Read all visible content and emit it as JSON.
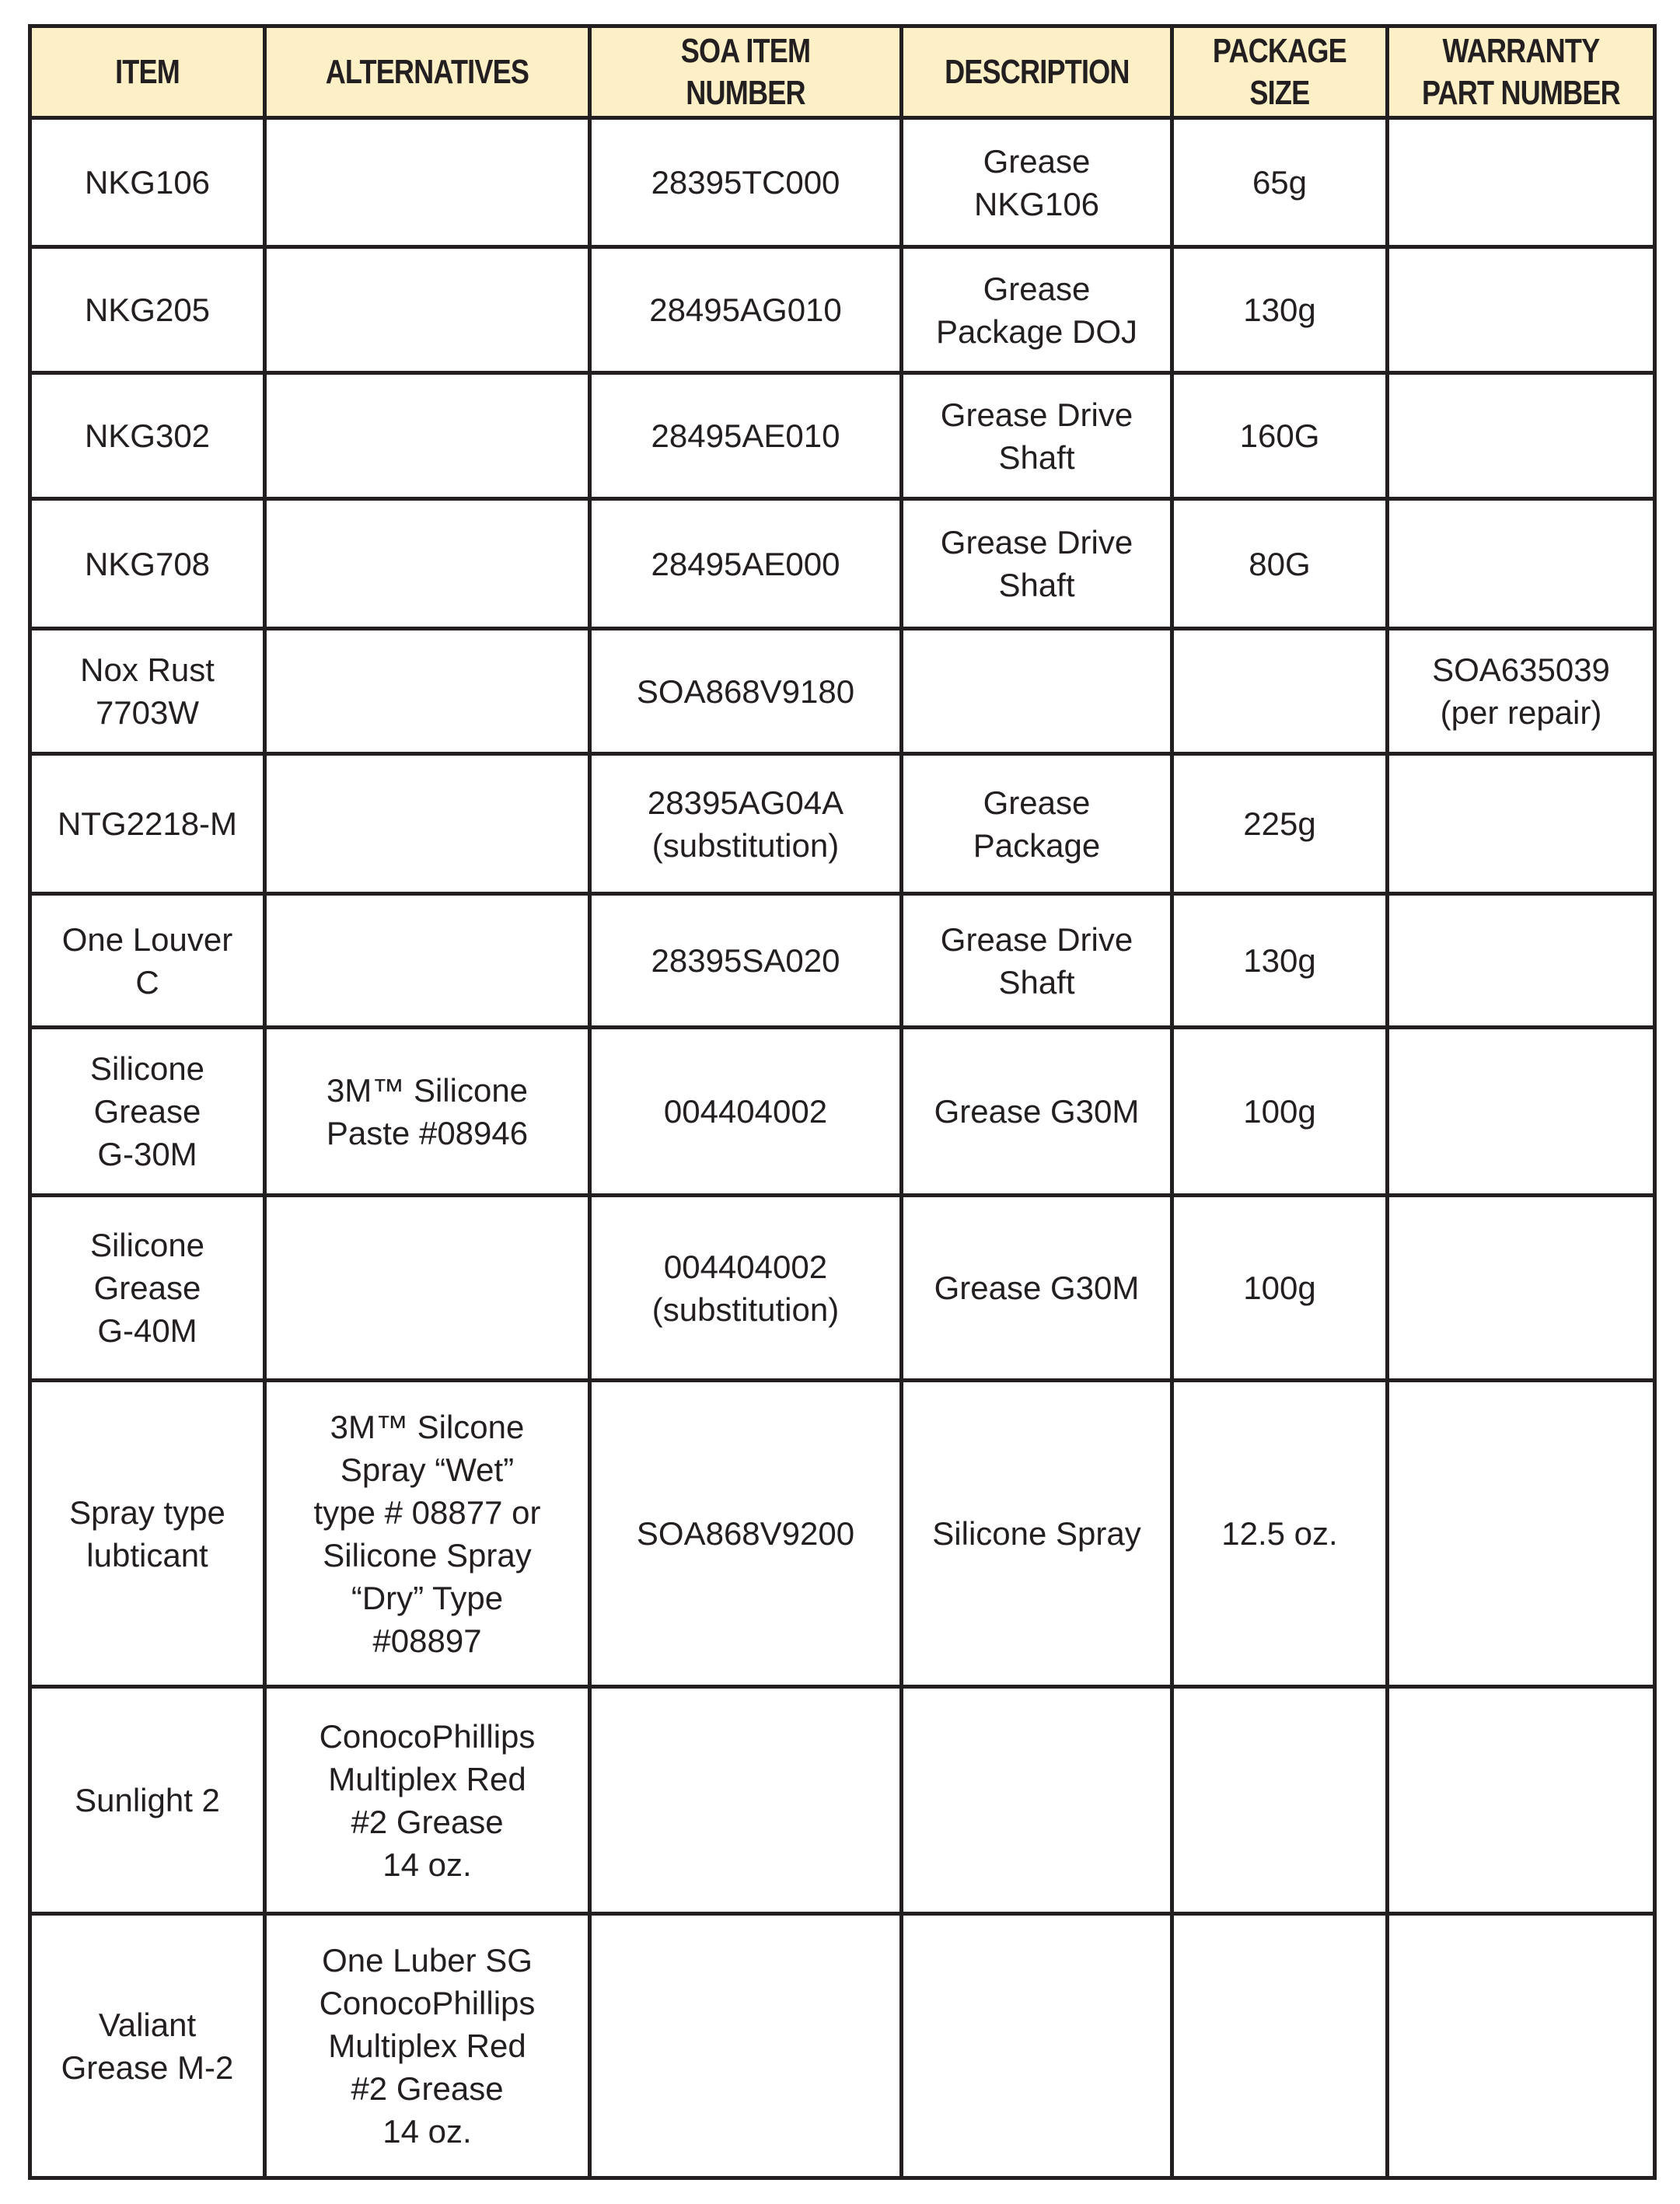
{
  "table": {
    "header_bg": "#fdf0c6",
    "columns": [
      "ITEM",
      "ALTERNATIVES",
      "SOA ITEM NUMBER",
      "DESCRIPTION",
      "PACKAGE\nSIZE",
      "WARRANTY\nPART NUMBER"
    ],
    "rows": [
      [
        "NKG106",
        "",
        "28395TC000",
        "Grease\nNKG106",
        "65g",
        ""
      ],
      [
        "NKG205",
        "",
        "28495AG010",
        "Grease\nPackage DOJ",
        "130g",
        ""
      ],
      [
        "NKG302",
        "",
        "28495AE010",
        "Grease Drive\nShaft",
        "160G",
        ""
      ],
      [
        "NKG708",
        "",
        "28495AE000",
        "Grease Drive\nShaft",
        "80G",
        ""
      ],
      [
        "Nox Rust\n7703W",
        "",
        "SOA868V9180",
        "",
        "",
        "SOA635039\n(per repair)"
      ],
      [
        "NTG2218-M",
        "",
        "28395AG04A\n(substitution)",
        "Grease\nPackage",
        "225g",
        ""
      ],
      [
        "One Louver\nC",
        "",
        "28395SA020",
        "Grease Drive\nShaft",
        "130g",
        ""
      ],
      [
        "Silicone\nGrease\nG-30M",
        "3M™ Silicone\nPaste #08946",
        "004404002",
        "Grease G30M",
        "100g",
        ""
      ],
      [
        "Silicone\nGrease\nG-40M",
        "",
        "004404002\n(substitution)",
        "Grease G30M",
        "100g",
        ""
      ],
      [
        "Spray type\nlubticant",
        "3M™ Silcone\nSpray “Wet”\ntype # 08877 or\nSilicone Spray\n“Dry” Type\n#08897",
        "SOA868V9200",
        "Silicone Spray",
        "12.5 oz.",
        ""
      ],
      [
        "Sunlight 2",
        "ConocoPhillips\nMultiplex Red\n#2 Grease\n14 oz.",
        "",
        "",
        "",
        ""
      ],
      [
        "Valiant\nGrease M-2",
        "One Luber SG\nConocoPhillips\nMultiplex Red\n#2 Grease\n14 oz.",
        "",
        "",
        "",
        ""
      ]
    ]
  }
}
